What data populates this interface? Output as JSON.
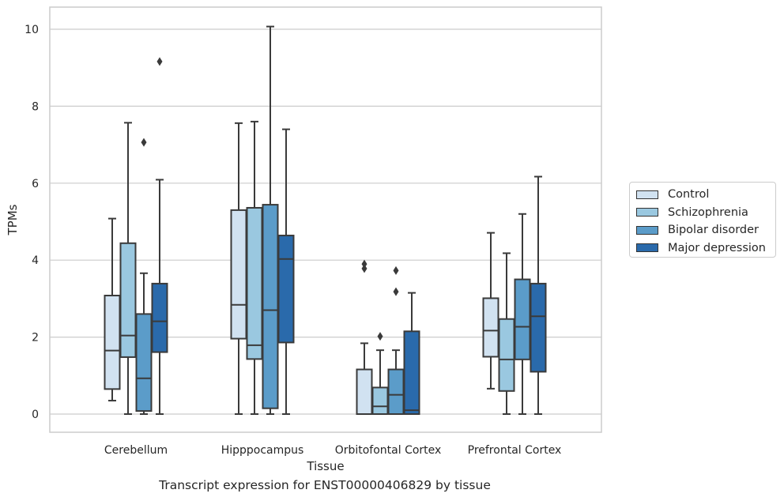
{
  "caption": "Transcript expression for ENST00000406829 by tissue",
  "chart_data": {
    "type": "box",
    "xlabel": "Tissue",
    "ylabel": "TPMs",
    "ylim": [
      -0.48,
      10.55
    ],
    "yticks": [
      0,
      2,
      4,
      6,
      8,
      10
    ],
    "grid": "horizontal",
    "legend_position": "right",
    "categories": [
      "Cerebellum",
      "Hipppocampus",
      "Orbitofontal Cortex",
      "Prefrontal Cortex"
    ],
    "series": [
      {
        "name": "Control",
        "color": "#d1e2f1",
        "boxes": [
          {
            "whislo": 0.35,
            "q1": 0.65,
            "med": 1.65,
            "q3": 3.08,
            "whishi": 5.08,
            "fliers": []
          },
          {
            "whislo": 0.0,
            "q1": 1.96,
            "med": 2.84,
            "q3": 5.3,
            "whishi": 7.56,
            "fliers": []
          },
          {
            "whislo": 0.0,
            "q1": 0.0,
            "med": 0.0,
            "q3": 1.16,
            "whishi": 1.84,
            "fliers": [
              3.78,
              3.9
            ]
          },
          {
            "whislo": 0.66,
            "q1": 1.49,
            "med": 2.17,
            "q3": 3.01,
            "whishi": 4.71,
            "fliers": []
          }
        ]
      },
      {
        "name": "Schizophrenia",
        "color": "#9ac8e0",
        "boxes": [
          {
            "whislo": 0.0,
            "q1": 1.48,
            "med": 2.04,
            "q3": 4.44,
            "whishi": 7.57,
            "fliers": []
          },
          {
            "whislo": 0.0,
            "q1": 1.43,
            "med": 1.79,
            "q3": 5.36,
            "whishi": 7.6,
            "fliers": []
          },
          {
            "whislo": 0.0,
            "q1": 0.0,
            "med": 0.2,
            "q3": 0.69,
            "whishi": 1.66,
            "fliers": [
              2.02
            ]
          },
          {
            "whislo": 0.0,
            "q1": 0.6,
            "med": 1.42,
            "q3": 2.47,
            "whishi": 4.18,
            "fliers": []
          }
        ]
      },
      {
        "name": "Bipolar disorder",
        "color": "#5b9cc9",
        "boxes": [
          {
            "whislo": 0.0,
            "q1": 0.08,
            "med": 0.93,
            "q3": 2.6,
            "whishi": 3.66,
            "fliers": [
              7.06
            ]
          },
          {
            "whislo": 0.0,
            "q1": 0.15,
            "med": 2.7,
            "q3": 5.44,
            "whishi": 10.07,
            "fliers": []
          },
          {
            "whislo": 0.0,
            "q1": 0.0,
            "med": 0.5,
            "q3": 1.16,
            "whishi": 1.66,
            "fliers": [
              3.18,
              3.73
            ]
          },
          {
            "whislo": 0.0,
            "q1": 1.42,
            "med": 2.27,
            "q3": 3.5,
            "whishi": 5.2,
            "fliers": []
          }
        ]
      },
      {
        "name": "Major depression",
        "color": "#2a6aab",
        "boxes": [
          {
            "whislo": 0.0,
            "q1": 1.61,
            "med": 2.41,
            "q3": 3.39,
            "whishi": 6.09,
            "fliers": [
              9.16
            ]
          },
          {
            "whislo": 0.0,
            "q1": 1.86,
            "med": 4.03,
            "q3": 4.64,
            "whishi": 7.4,
            "fliers": []
          },
          {
            "whislo": 0.0,
            "q1": 0.0,
            "med": 0.1,
            "q3": 2.15,
            "whishi": 3.15,
            "fliers": []
          },
          {
            "whislo": 0.0,
            "q1": 1.1,
            "med": 2.54,
            "q3": 3.39,
            "whishi": 6.17,
            "fliers": []
          }
        ]
      }
    ]
  }
}
